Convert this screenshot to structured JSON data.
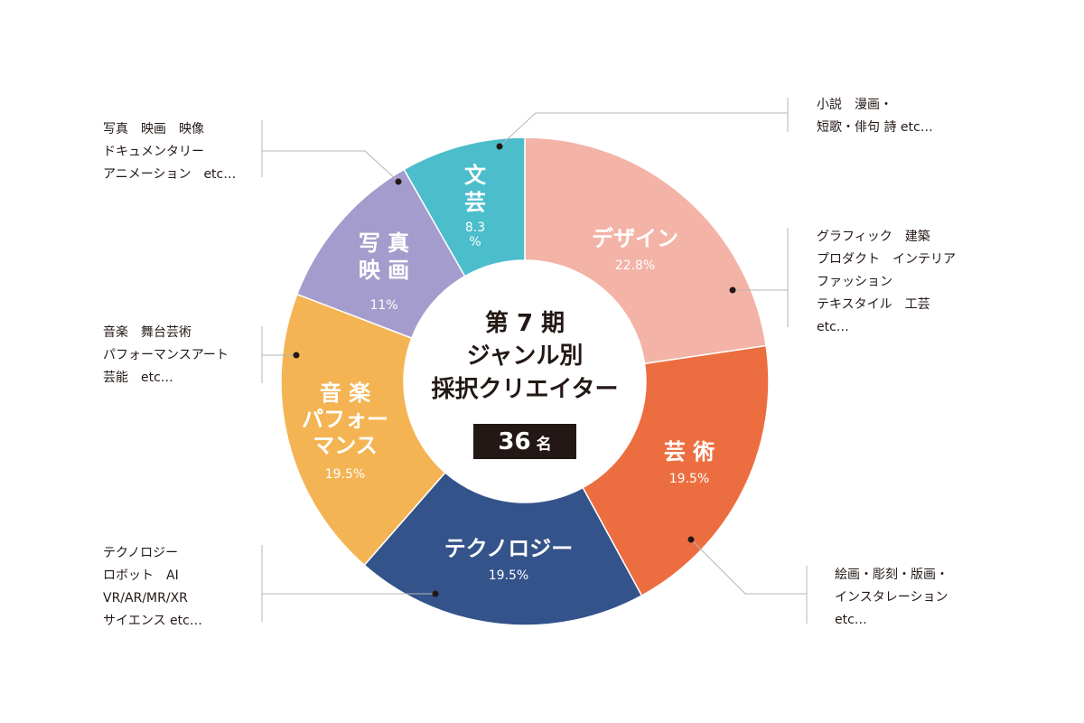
{
  "chart_data": {
    "type": "pie",
    "donut": true,
    "center": {
      "title_lines": [
        "第 7 期",
        "ジャンル別",
        "採択クリエイター"
      ],
      "count_value": "36",
      "count_unit": "名"
    },
    "segments": [
      {
        "id": "design",
        "label_lines": [
          "デザイン"
        ],
        "percent_label": "22.8%",
        "value": 22.8,
        "color": "#f3b3a6",
        "notes": [
          "グラフィック　建築",
          "プロダクト　インテリア",
          "ファッション",
          "テキスタイル　工芸",
          "etc…"
        ]
      },
      {
        "id": "art",
        "label_lines": [
          "芸 術"
        ],
        "percent_label": "19.5%",
        "value": 19.5,
        "color": "#ec6e40",
        "notes": [
          "絵画・彫刻・版画・",
          "インスタレーション",
          "etc…"
        ]
      },
      {
        "id": "technology",
        "label_lines": [
          "テクノロジー"
        ],
        "percent_label": "19.5%",
        "value": 19.5,
        "color": "#33538a",
        "notes": [
          "テクノロジー",
          "ロボット　AI",
          "VR/AR/MR/XR",
          "サイエンス etc…"
        ]
      },
      {
        "id": "music",
        "label_lines": [
          "音 楽",
          "パフォー",
          "マンス"
        ],
        "percent_label": "19.5%",
        "value": 19.5,
        "color": "#f4b454",
        "notes": [
          "音楽　舞台芸術",
          "パフォーマンスアート",
          "芸能　etc…"
        ]
      },
      {
        "id": "photo",
        "label_lines": [
          "写 真",
          "映 画"
        ],
        "percent_label": "11%",
        "value": 11,
        "color": "#a49ccc",
        "notes": [
          "写真　映画　映像",
          "ドキュメンタリー",
          "アニメーション　etc…"
        ]
      },
      {
        "id": "literature",
        "label_lines": [
          "文",
          "芸"
        ],
        "percent_label": "8.3\n%",
        "value": 8.3,
        "color": "#4bbdcb",
        "notes": [
          "小説　漫画・",
          "短歌・俳句  詩 etc…"
        ]
      }
    ]
  }
}
